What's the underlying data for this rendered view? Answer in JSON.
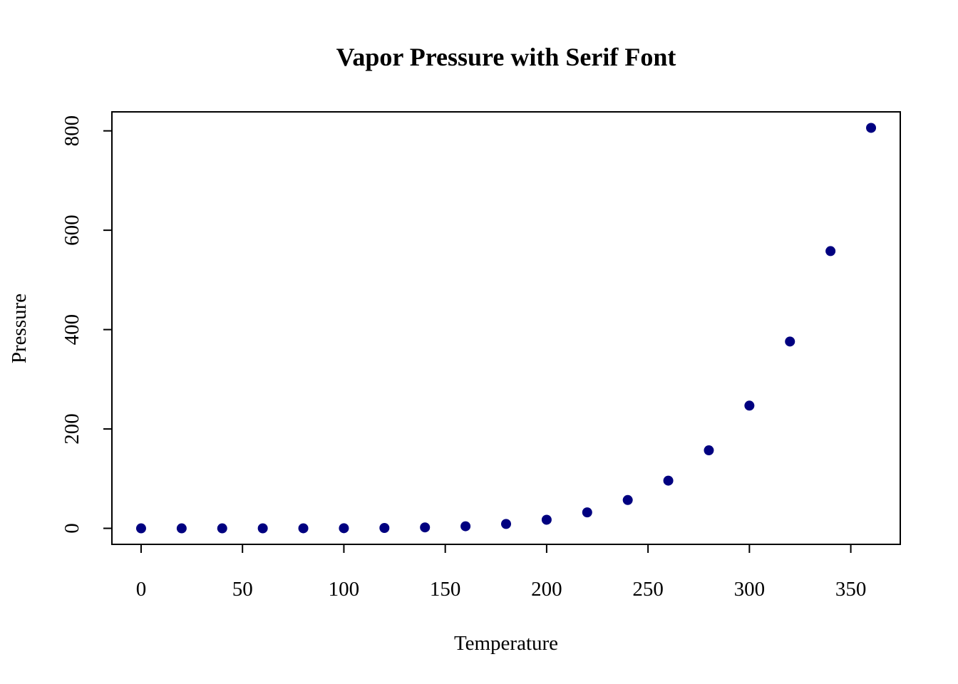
{
  "chart_data": {
    "type": "scatter",
    "title": "Vapor Pressure with Serif Font",
    "xlabel": "Temperature",
    "ylabel": "Pressure",
    "x": [
      0,
      20,
      40,
      60,
      80,
      100,
      120,
      140,
      160,
      180,
      200,
      220,
      240,
      260,
      280,
      300,
      320,
      340,
      360
    ],
    "y": [
      0.0002,
      0.0012,
      0.006,
      0.03,
      0.09,
      0.27,
      0.75,
      1.85,
      4.2,
      8.8,
      17.3,
      32.1,
      57.0,
      96.0,
      157.0,
      247.0,
      376.0,
      558.0,
      806.0
    ],
    "xlim": [
      -14.4,
      374.4
    ],
    "ylim": [
      -32.24,
      838.24
    ],
    "xticks": [
      0,
      50,
      100,
      150,
      200,
      250,
      300,
      350
    ],
    "yticks": [
      0,
      200,
      400,
      600,
      800
    ],
    "point_color": "#000080",
    "grid": false,
    "legend": "none"
  }
}
